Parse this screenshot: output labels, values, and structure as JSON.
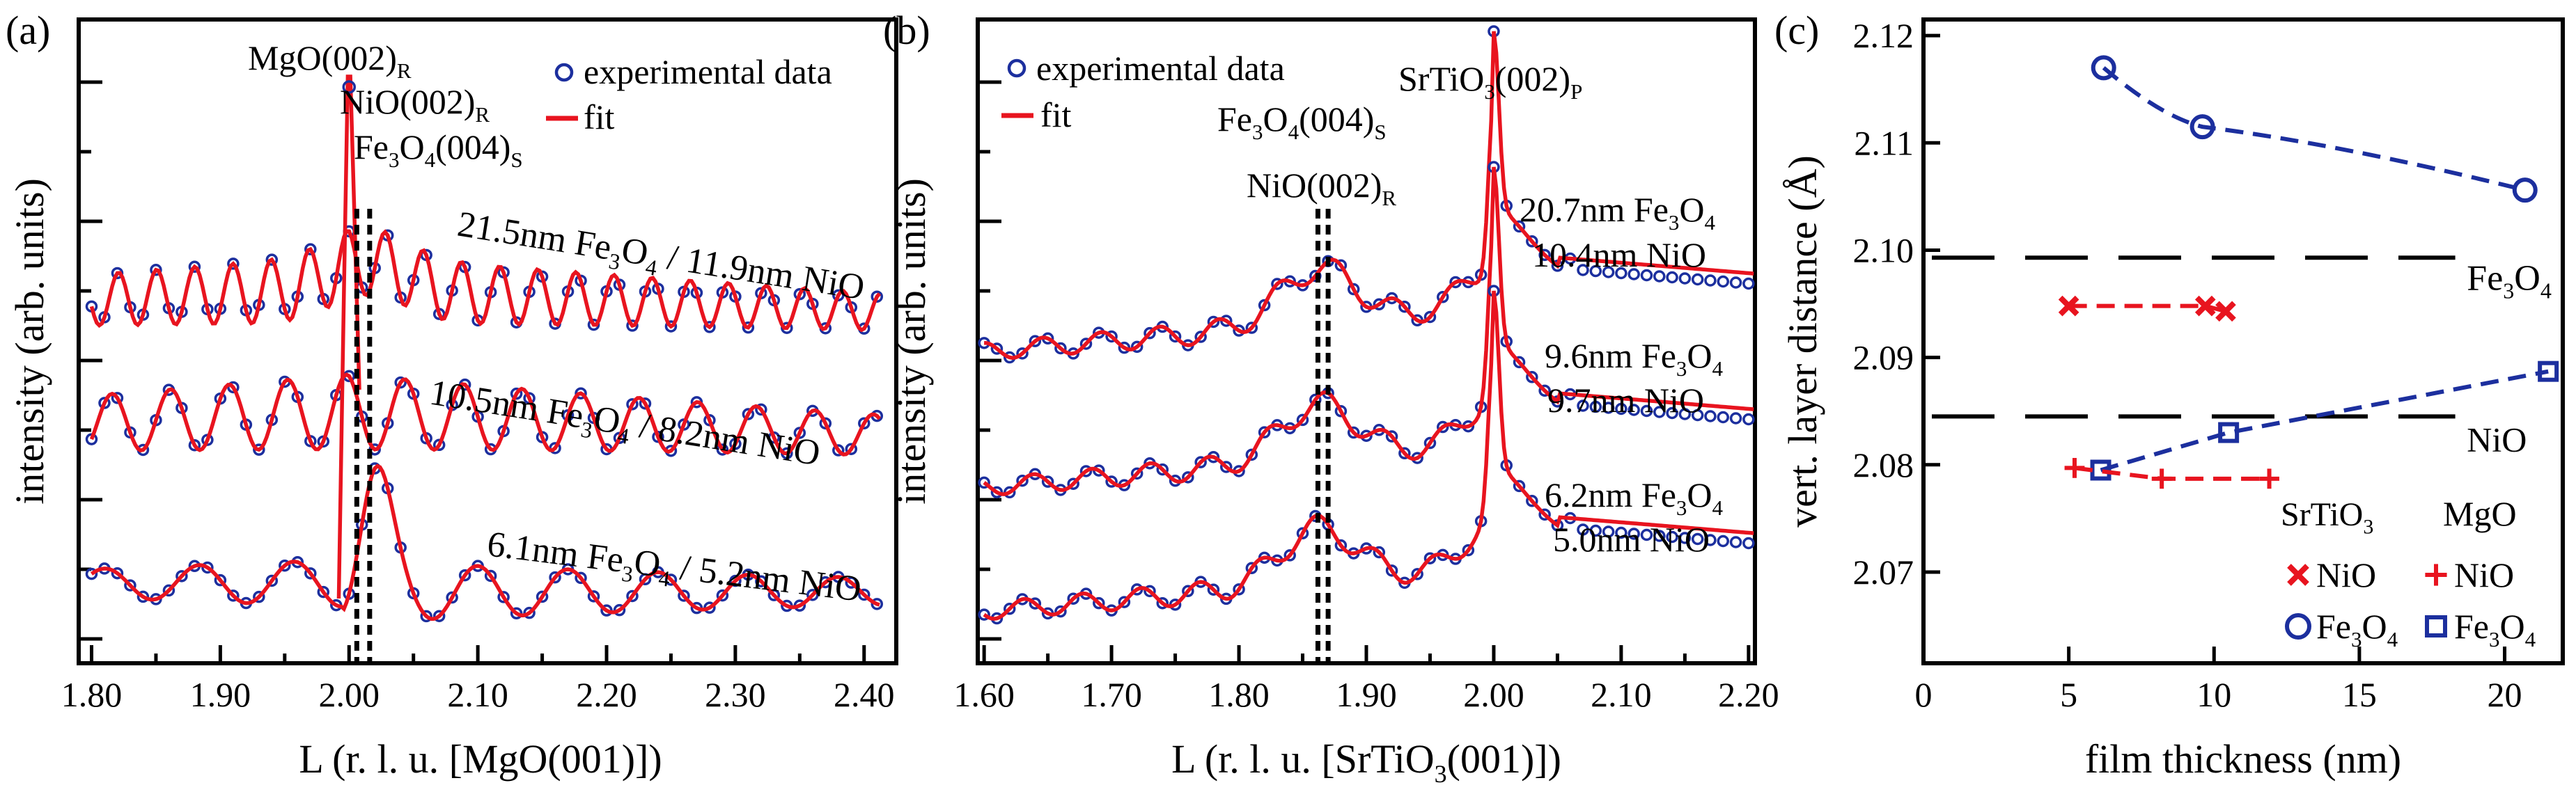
{
  "chart_data": [
    {
      "panel_label": "(a)",
      "type": "line",
      "xlabel": "L (r. l. u. [MgO(001)])",
      "ylabel": "intensity (arb. units)",
      "xlim": [
        1.79,
        2.425
      ],
      "xticks": [
        "1.80",
        "1.90",
        "2.00",
        "2.10",
        "2.20",
        "2.30",
        "2.40"
      ],
      "legend": [
        {
          "label": "experimental data",
          "marker": "circle",
          "color": "#1c2f9e"
        },
        {
          "label": "fit",
          "marker": "line",
          "color": "#e8141f"
        }
      ],
      "annotations": [
        {
          "text": "MgO(002)",
          "sub": "R"
        },
        {
          "text": "NiO(002)",
          "sub": "R"
        },
        {
          "text": "Fe",
          "sub": "3",
          "text2": "O",
          "sub2": "4",
          "text3": "(004)",
          "sub3": "S"
        }
      ],
      "series": [
        {
          "name": "21.5nm Fe3O4 / 11.9nm NiO",
          "label": {
            "a": "21.5nm Fe",
            "s1": "3",
            "b": "O",
            "s2": "4",
            "c": " / 11.9nm NiO"
          }
        },
        {
          "name": "10.5nm Fe3O4 / 8.2nm NiO",
          "label": {
            "a": "10.5nm Fe",
            "s1": "3",
            "b": "O",
            "s2": "4",
            "c": " / 8.2nm NiO"
          }
        },
        {
          "name": "6.1nm Fe3O4 / 5.2nm NiO",
          "label": {
            "a": "6.1nm Fe",
            "s1": "3",
            "b": "O",
            "s2": "4",
            "c": " / 5.2nm NiO"
          }
        }
      ],
      "vlines": [
        2.006,
        2.016
      ]
    },
    {
      "panel_label": "(b)",
      "type": "line",
      "xlabel": "L (r. l. u. [SrTiO3(001)])",
      "xlabel_parts": {
        "a": "L (r. l. u. [SrTiO",
        "s": "3",
        "b": "(001)])"
      },
      "ylabel": "intensity (arb. units)",
      "xlim": [
        1.595,
        2.205
      ],
      "xticks": [
        "1.60",
        "1.70",
        "1.80",
        "1.90",
        "2.00",
        "2.10",
        "2.20"
      ],
      "legend": [
        {
          "label": "experimental data",
          "marker": "circle",
          "color": "#1c2f9e"
        },
        {
          "label": "fit",
          "marker": "line",
          "color": "#e8141f"
        }
      ],
      "annotations": [
        {
          "text": "Fe",
          "sub": "3",
          "text2": "O",
          "sub2": "4",
          "text3": "(004)",
          "sub3": "S"
        },
        {
          "text": "NiO(002)",
          "sub": "R"
        },
        {
          "text": "SrTiO",
          "sub": "3",
          "text2": "(002)",
          "sub2": "P"
        }
      ],
      "series": [
        {
          "name": "20.7nm Fe3O4 10.4nm NiO",
          "line1": {
            "a": "20.7nm Fe",
            "s1": "3",
            "b": "O",
            "s2": "4"
          },
          "line2": "10.4nm NiO"
        },
        {
          "name": "9.6nm Fe3O4 9.7nm NiO",
          "line1": {
            "a": "9.6nm Fe",
            "s1": "3",
            "b": "O",
            "s2": "4"
          },
          "line2": "9.7nm NiO"
        },
        {
          "name": "6.2nm Fe3O4 5.0nm NiO",
          "line1": {
            "a": "6.2nm Fe",
            "s1": "3",
            "b": "O",
            "s2": "4"
          },
          "line2": "5.0nm NiO"
        }
      ],
      "vlines": [
        1.862,
        1.87
      ]
    },
    {
      "panel_label": "(c)",
      "type": "scatter",
      "xlabel": "film thickness (nm)",
      "ylabel": "vert. layer distance (Å)",
      "xlim": [
        0,
        22
      ],
      "ylim": [
        2.0615,
        2.1215
      ],
      "xticks": [
        0,
        5,
        10,
        15,
        20
      ],
      "yticks": [
        "2.07",
        "2.08",
        "2.09",
        "2.10",
        "2.11",
        "2.12"
      ],
      "reference_lines": [
        {
          "label": "Fe3O4",
          "label_parts": {
            "a": "Fe",
            "s1": "3",
            "b": "O",
            "s2": "4"
          },
          "y": 2.0993
        },
        {
          "label": "NiO",
          "y": 2.0845
        }
      ],
      "series": [
        {
          "name": "SrTiO3 / Fe3O4",
          "substrate": "SrTiO3",
          "film": "Fe3O4",
          "marker": "circle",
          "color": "#1c2f9e",
          "x": [
            6.2,
            9.6,
            20.7
          ],
          "y": [
            2.117,
            2.1115,
            2.1056
          ]
        },
        {
          "name": "SrTiO3 / NiO",
          "substrate": "SrTiO3",
          "film": "NiO",
          "marker": "x",
          "color": "#e8141f",
          "x": [
            5.0,
            9.7,
            10.4
          ],
          "y": [
            2.0948,
            2.0948,
            2.0943
          ]
        },
        {
          "name": "MgO / Fe3O4",
          "substrate": "MgO",
          "film": "Fe3O4",
          "marker": "square",
          "color": "#1c2f9e",
          "x": [
            6.1,
            10.5,
            21.5
          ],
          "y": [
            2.0795,
            2.083,
            2.0887
          ]
        },
        {
          "name": "MgO / NiO",
          "substrate": "MgO",
          "film": "NiO",
          "marker": "plus",
          "color": "#e8141f",
          "x": [
            5.2,
            8.2,
            11.9
          ],
          "y": [
            2.0797,
            2.0787,
            2.0787
          ]
        }
      ],
      "legend": {
        "headers": [
          {
            "a": "SrTiO",
            "s": "3"
          },
          {
            "a": "MgO",
            "s": ""
          }
        ],
        "entries": [
          {
            "col": 0,
            "marker": "x",
            "color": "#e8141f",
            "label": "NiO"
          },
          {
            "col": 1,
            "marker": "plus",
            "color": "#e8141f",
            "label": "NiO"
          },
          {
            "col": 0,
            "marker": "circle",
            "color": "#1c2f9e",
            "label": {
              "a": "Fe",
              "s1": "3",
              "b": "O",
              "s2": "4"
            }
          },
          {
            "col": 1,
            "marker": "square",
            "color": "#1c2f9e",
            "label": {
              "a": "Fe",
              "s1": "3",
              "b": "O",
              "s2": "4"
            }
          }
        ]
      }
    }
  ]
}
